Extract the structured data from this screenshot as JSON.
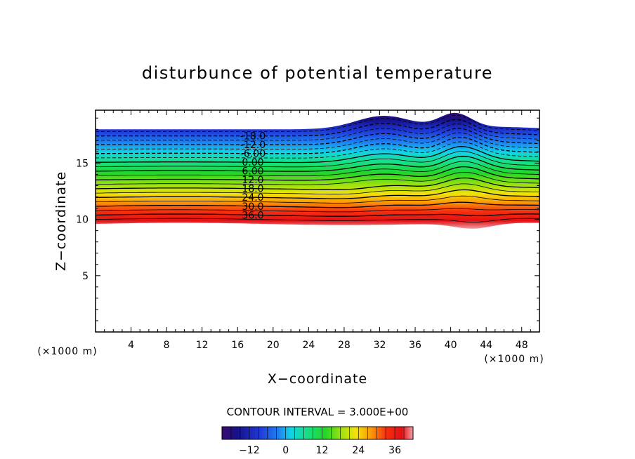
{
  "chart_data": {
    "type": "contour",
    "title": "disturbunce of potential temperature",
    "xlabel": "X−coordinate",
    "ylabel": "Z−coordinate",
    "x_unit": "(×1000 m)",
    "y_unit": "(×1000 m)",
    "xlim": [
      0,
      50
    ],
    "ylim": [
      0,
      19.7
    ],
    "x_ticks": [
      "4",
      "8",
      "12",
      "16",
      "20",
      "24",
      "28",
      "32",
      "36",
      "40",
      "44",
      "48"
    ],
    "y_ticks": [
      "5",
      "10",
      "15"
    ],
    "contour_interval_label": "CONTOUR INTERVAL = 3.000E+00",
    "contour_interval": 3,
    "contour_labels": [
      "-18.0",
      "-12.0",
      "-6.00",
      "0.00",
      "6.00",
      "12.0",
      "18.0",
      "24.0",
      "30.0",
      "36.0"
    ],
    "colorbar": {
      "range": [
        -21,
        42
      ],
      "ticks": [
        "−12",
        "0",
        "12",
        "24",
        "36"
      ],
      "colors": [
        "#3a0a6e",
        "#16108c",
        "#1f3ad8",
        "#1e86f2",
        "#12d2e6",
        "#16e08a",
        "#22d62a",
        "#9ae20e",
        "#f2e20c",
        "#fb9a08",
        "#f63010",
        "#e21014",
        "#f0a0a8"
      ]
    },
    "grid": false
  }
}
